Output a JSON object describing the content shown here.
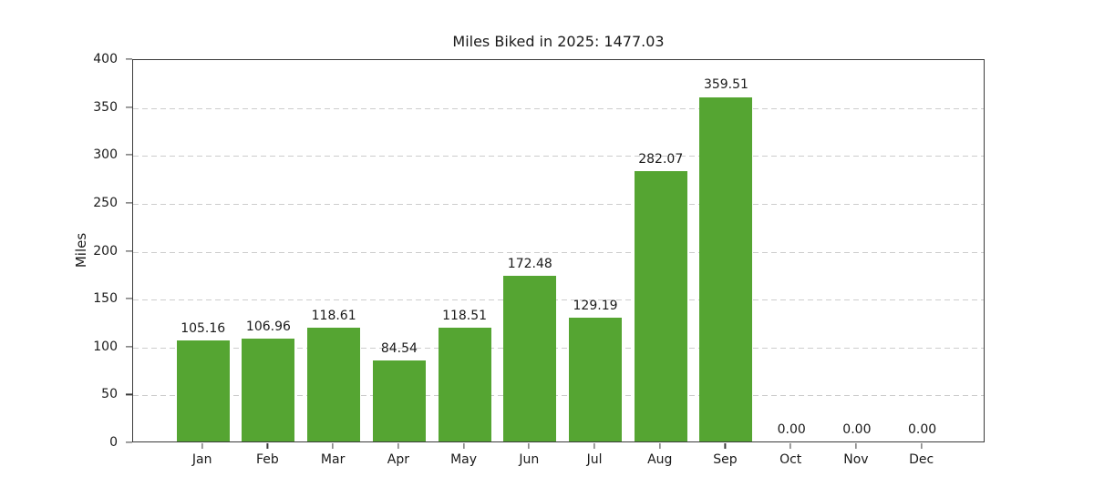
{
  "chart_data": {
    "type": "bar",
    "title": "Miles Biked in 2025: 1477.03",
    "total": "1477.03",
    "xlabel": "",
    "ylabel": "Miles",
    "categories": [
      "Jan",
      "Feb",
      "Mar",
      "Apr",
      "May",
      "Jun",
      "Jul",
      "Aug",
      "Sep",
      "Oct",
      "Nov",
      "Dec"
    ],
    "values": [
      105.16,
      106.96,
      118.61,
      84.54,
      118.51,
      172.48,
      129.19,
      282.07,
      359.51,
      0,
      0,
      0
    ],
    "value_labels": [
      "105.16",
      "106.96",
      "118.61",
      "84.54",
      "118.51",
      "172.48",
      "129.19",
      "282.07",
      "359.51",
      "0.00",
      "0.00",
      "0.00"
    ],
    "ylim": [
      0,
      400
    ],
    "yticks": [
      0,
      50,
      100,
      150,
      200,
      250,
      300,
      350,
      400
    ],
    "grid": "horizontal-dashed",
    "legend": "none",
    "colors": {
      "bar": "#55a532",
      "gridline": "#cdcdcd",
      "spine": "#3b3b3b",
      "text": "#1a1a1a",
      "background": "#ffffff"
    }
  }
}
